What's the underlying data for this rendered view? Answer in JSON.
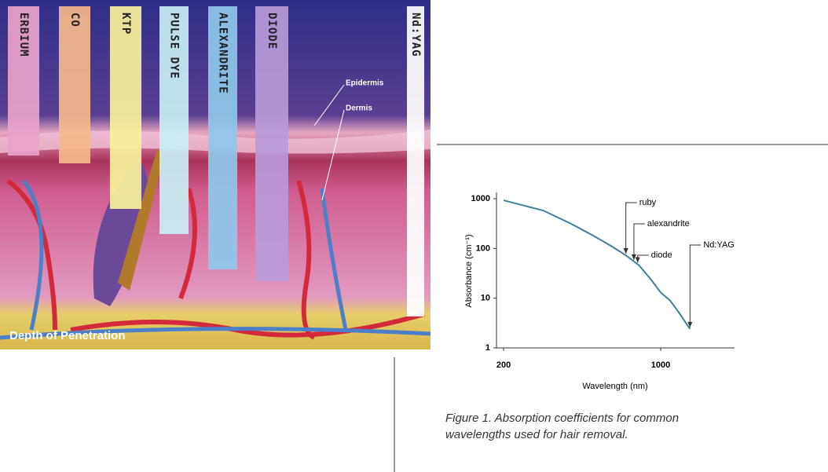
{
  "illustration": {
    "lasers": [
      "ERBIUM",
      "CO",
      "KTP",
      "PULSE DYE",
      "ALEXANDRITE",
      "DIODE",
      "Nd:YAG"
    ],
    "layers": [
      "Epidermis",
      "Dermis"
    ],
    "caption": "Depth of Penetration"
  },
  "chart_data": {
    "type": "line",
    "x_label": "Wavelength (nm)",
    "y_label": "Absorbance (cm⁻¹)",
    "x": [
      200,
      300,
      400,
      500,
      600,
      700,
      800,
      900,
      1000,
      1100,
      1200,
      1350
    ],
    "series": [
      {
        "color": "#3f7f98",
        "values": [
          930,
          580,
          313,
          182,
          113,
          73,
          46,
          24.5,
          13,
          9,
          5.3,
          2.4
        ]
      }
    ],
    "xlim": [
      186,
      2130
    ],
    "xticks": [
      200,
      1000
    ],
    "x_log": true,
    "ylim": [
      1,
      1340
    ],
    "yticks": [
      1,
      10,
      100,
      1000
    ],
    "y_log": true,
    "annotations": [
      {
        "text": "ruby",
        "x": 700
      },
      {
        "text": "alexandrite",
        "x": 760
      },
      {
        "text": "diode",
        "x": 790
      },
      {
        "text": "Nd:YAG",
        "x": 1350
      }
    ]
  },
  "figure_caption": [
    "Figure 1. Absorption coefficients for common",
    "wavelengths used for hair removal."
  ]
}
